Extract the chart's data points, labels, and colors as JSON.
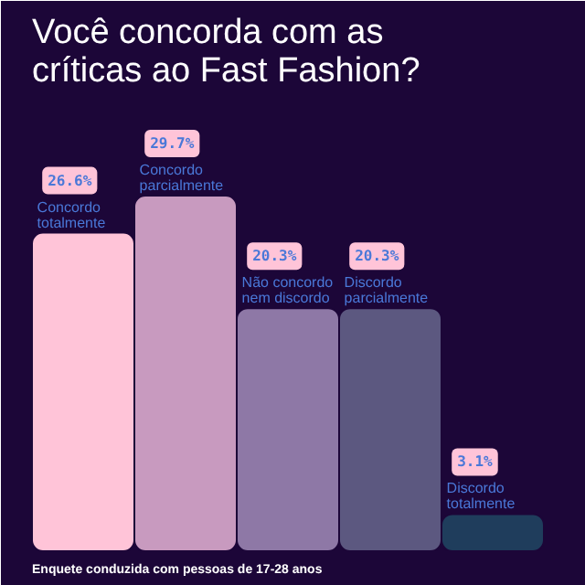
{
  "chart_data": {
    "type": "bar",
    "title": "Você concorda com as\ncríticas ao Fast Fashion?",
    "categories": [
      "Concordo\ntotalmente",
      "Concordo\nparcialmente",
      "Não concordo\nnem discordo",
      "Discordo\nparcialmente",
      "Discordo\ntotalmente"
    ],
    "values": [
      26.6,
      29.7,
      20.3,
      20.3,
      3.1
    ],
    "colors": [
      "#ffc4d8",
      "#c89abf",
      "#8e78a6",
      "#5c5880",
      "#1f3d5c"
    ],
    "value_labels": [
      "26.6%",
      "29.7%",
      "20.3%",
      "20.3%",
      "3.1%"
    ],
    "annotations": [
      "Enquete conduzida com pessoas de 17-28 anos"
    ]
  }
}
